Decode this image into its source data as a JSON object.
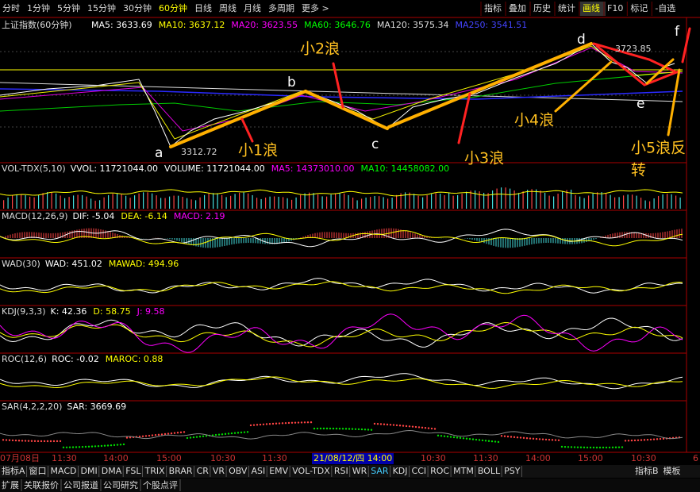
{
  "toolbar": {
    "periods": [
      "分时",
      "1分钟",
      "5分钟",
      "15分钟",
      "30分钟",
      "60分钟",
      "日线",
      "周线",
      "月线",
      "多周期",
      "更多 >"
    ],
    "tools": [
      "指标",
      "叠加",
      "历史",
      "统计",
      "画线",
      "F10",
      "标记",
      "-自选"
    ]
  },
  "main": {
    "title": "上证指数(60分钟)",
    "ma": [
      "MA5: 3633.69",
      "MA10: 3637.12",
      "MA20: 3623.55",
      "MA60: 3646.76",
      "MA120: 3575.34",
      "MA250: 3541.51"
    ],
    "low_label": "3312.72",
    "high_label": "3723.85",
    "points": [
      "a",
      "b",
      "c",
      "d",
      "e",
      "f"
    ],
    "waves": [
      "小1浪",
      "小2浪",
      "小3浪",
      "小4浪",
      "小5浪反",
      "转"
    ]
  },
  "panels": [
    {
      "name": "VOL-TDX(5,10)",
      "values": [
        "VVOL: 11721044.00",
        "VOLUME: 11721044.00",
        "MA5: 14373010.00",
        "MA10: 14458082.00"
      ]
    },
    {
      "name": "MACD(12,26,9)",
      "values": [
        "DIF: -5.04",
        "DEA: -6.14",
        "MACD: 2.19"
      ]
    },
    {
      "name": "WAD(30)",
      "values": [
        "WAD: 451.02",
        "MAWAD: 494.96"
      ]
    },
    {
      "name": "KDJ(9,3,3)",
      "values": [
        "K: 42.36",
        "D: 58.75",
        "J: 9.58"
      ]
    },
    {
      "name": "ROC(12,6)",
      "values": [
        "ROC: -0.02",
        "MAROC: 0.88"
      ]
    },
    {
      "name": "SAR(4,2,2,20)",
      "values": [
        "SAR: 3669.69"
      ]
    }
  ],
  "time_axis": [
    "07月08日",
    "11:30",
    "14:00",
    "15:00",
    "10:30",
    "11:30",
    "21/08/12/四 14:00",
    "10:30",
    "11:30",
    "14:00",
    "15:00",
    "10:30",
    "6"
  ],
  "indicator_tabs": [
    "指标A",
    "窗口",
    "MACD",
    "DMI",
    "DMA",
    "FSL",
    "TRIX",
    "BRAR",
    "CR",
    "VR",
    "OBV",
    "ASI",
    "EMV",
    "VOL-TDX",
    "RSI",
    "WR",
    "SAR",
    "KDJ",
    "CCI",
    "ROC",
    "MTM",
    "BOLL",
    "PSY"
  ],
  "right_tabs": [
    "指标B",
    "模板"
  ],
  "bottom_tabs": [
    "扩展",
    "关联报价",
    "公司报道",
    "公司研究",
    "个股点评"
  ]
}
